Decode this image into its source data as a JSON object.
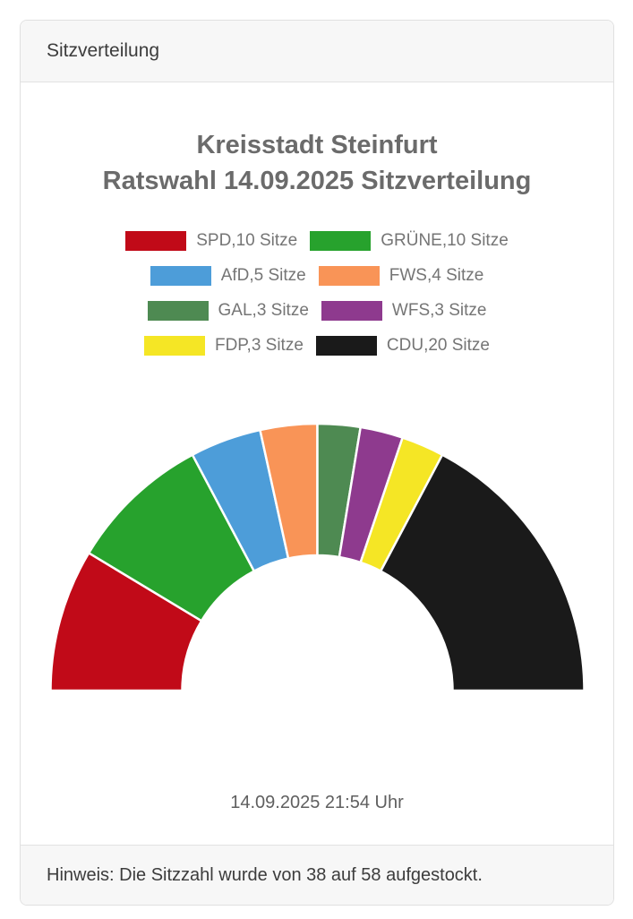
{
  "header": {
    "title": "Sitzverteilung"
  },
  "main": {
    "title_line1": "Kreisstadt Steinfurt",
    "title_line2": "Ratswahl 14.09.2025 Sitzverteilung",
    "timestamp": "14.09.2025 21:54 Uhr"
  },
  "footer": {
    "note": "Hinweis: Die Sitzzahl wurde von 38 auf 58 aufgestockt."
  },
  "chart_data": {
    "type": "pie",
    "subtype": "half-donut",
    "title": "Kreisstadt Steinfurt Ratswahl 14.09.2025 Sitzverteilung",
    "total_seats": 58,
    "legend_position": "top",
    "legend_columns": 2,
    "arc_start_deg": 180,
    "arc_end_deg": 0,
    "series": [
      {
        "name": "SPD",
        "seats": 10,
        "label": "SPD,10 Sitze",
        "color": "#c10a18"
      },
      {
        "name": "GRUENE",
        "seats": 10,
        "label": "GRÜNE,10 Sitze",
        "color": "#27a22d"
      },
      {
        "name": "AfD",
        "seats": 5,
        "label": "AfD,5 Sitze",
        "color": "#4d9dd9"
      },
      {
        "name": "FWS",
        "seats": 4,
        "label": "FWS,4 Sitze",
        "color": "#f99457"
      },
      {
        "name": "GAL",
        "seats": 3,
        "label": "GAL,3 Sitze",
        "color": "#4e8a52"
      },
      {
        "name": "WFS",
        "seats": 3,
        "label": "WFS,3 Sitze",
        "color": "#8e3a8e"
      },
      {
        "name": "FDP",
        "seats": 3,
        "label": "FDP,3 Sitze",
        "color": "#f5e625"
      },
      {
        "name": "CDU",
        "seats": 20,
        "label": "CDU,20 Sitze",
        "color": "#1a1a1a"
      }
    ]
  }
}
